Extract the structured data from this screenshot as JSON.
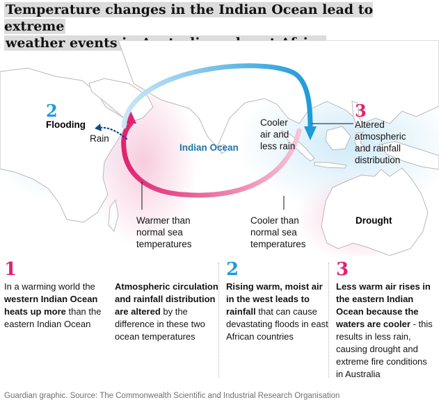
{
  "headline": {
    "line1": "Temperature changes in the Indian Ocean lead to extreme",
    "line2": "weather events in Australia and east Africa"
  },
  "map": {
    "ocean_label": "Indian Ocean",
    "africa_number": "2",
    "africa_flood": "Flooding",
    "africa_rain": "Rain",
    "east_number": "3",
    "east_label": [
      "Altered",
      "atmospheric",
      "and rainfall",
      "distribution"
    ],
    "cooler_label": [
      "Cooler",
      "air and",
      "less rain"
    ],
    "warmer_callout": [
      "Warmer than",
      "normal sea",
      "temperatures"
    ],
    "cooler_callout": [
      "Cooler than",
      "normal sea",
      "temperatures"
    ],
    "drought_label": "Drought"
  },
  "columns": {
    "col1": {
      "number": "1",
      "p1": [
        "In a warming world the ",
        "western Indian Ocean heats up more",
        " than the eastern Indian Ocean"
      ],
      "p2": [
        "Atmospheric circulation and rainfall distribution are altered",
        " by the difference in these two ocean temperatures"
      ]
    },
    "col2": {
      "number": "2",
      "p": [
        "Rising warm, moist air in the west leads to rainfall",
        " that can cause devastating floods in east African countries"
      ]
    },
    "col3": {
      "number": "3",
      "p": [
        "Less warm air rises in the eastern Indian Ocean because the waters are cooler",
        " - this results in less rain, causing drought and extreme fire conditions in Australia"
      ]
    }
  },
  "source": "Guardian graphic. Source: The Commonwealth Scientific and Industrial Research Organisation",
  "colors": {
    "pink": "#e0236f",
    "blue": "#1e9bd8",
    "ocean_label": "#1f74a8",
    "dark_blue_dots": "#0a4a8a"
  }
}
